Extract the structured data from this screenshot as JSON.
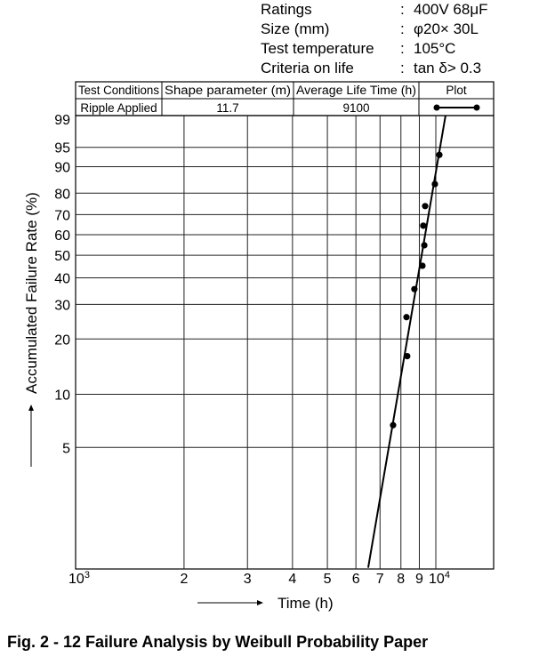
{
  "specs": [
    {
      "label": "Ratings",
      "value": "400V 68μF"
    },
    {
      "label": "Size (mm)",
      "value": "φ20× 30L"
    },
    {
      "label": "Test temperature",
      "value": "105°C"
    },
    {
      "label": "Criteria on life",
      "value": "tan δ> 0.3"
    }
  ],
  "separator": ":",
  "table": {
    "headers": [
      "Test Conditions",
      "Shape parameter (m)",
      "Average Life Time (h)",
      "Plot"
    ],
    "row": [
      "Ripple Applied",
      "11.7",
      "9100"
    ]
  },
  "caption": "Fig.  2 - 12    Failure Analysis by Weibull Probability Paper",
  "chart_data": {
    "type": "scatter",
    "title": "Failure Analysis by Weibull Probability Paper",
    "xlabel": "Time (h)",
    "ylabel": "Accumulated Failure Rate (%)",
    "xscale": "log",
    "yscale": "weibull",
    "xlim": [
      1000,
      14300
    ],
    "ylim": [
      1,
      99
    ],
    "grid": true,
    "x_ticks": [
      {
        "value": 1000,
        "label": "10",
        "sup": "3"
      },
      {
        "value": 2000,
        "label": "2"
      },
      {
        "value": 3000,
        "label": "3"
      },
      {
        "value": 4000,
        "label": "4"
      },
      {
        "value": 5000,
        "label": "5"
      },
      {
        "value": 6000,
        "label": "6"
      },
      {
        "value": 7000,
        "label": "7"
      },
      {
        "value": 8000,
        "label": "8"
      },
      {
        "value": 9000,
        "label": "9"
      },
      {
        "value": 10000,
        "label": "10",
        "sup": "4"
      }
    ],
    "y_ticks": [
      99,
      95,
      90,
      80,
      70,
      60,
      50,
      40,
      30,
      20,
      10,
      5
    ],
    "points": [
      {
        "x": 7610,
        "y": 6.7
      },
      {
        "x": 8330,
        "y": 16.2
      },
      {
        "x": 8290,
        "y": 25.9
      },
      {
        "x": 8720,
        "y": 35.5
      },
      {
        "x": 9180,
        "y": 45.2
      },
      {
        "x": 9290,
        "y": 54.8
      },
      {
        "x": 9230,
        "y": 64.5
      },
      {
        "x": 9340,
        "y": 74.1
      },
      {
        "x": 9940,
        "y": 83.8
      },
      {
        "x": 10230,
        "y": 93.3
      }
    ],
    "fit_line": {
      "shape_parameter": 11.7,
      "from": {
        "x": 6490,
        "y": 1.0
      },
      "to": {
        "x": 10640,
        "y": 99
      }
    }
  }
}
